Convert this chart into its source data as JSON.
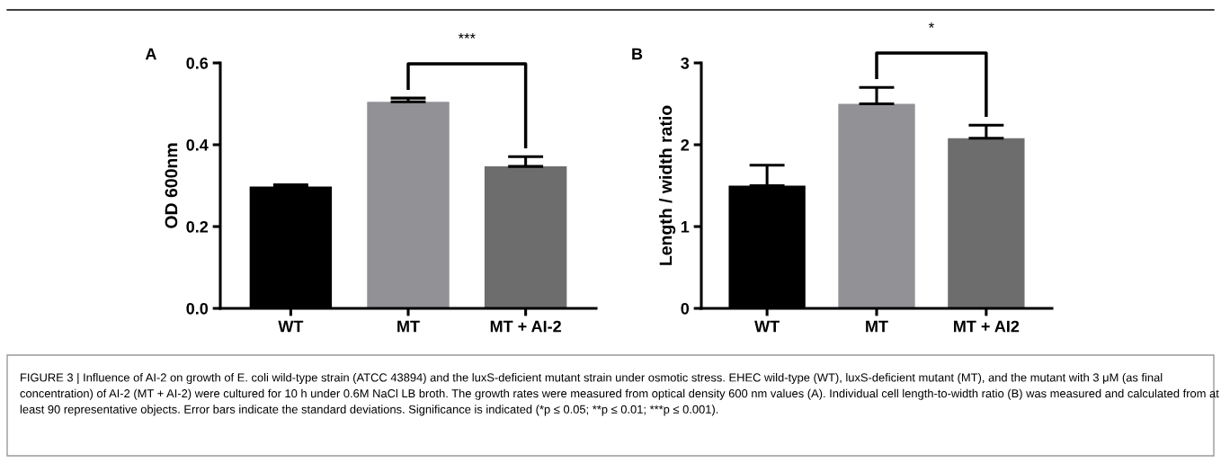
{
  "chart_data": [
    {
      "type": "bar",
      "title": "A",
      "ylabel": "OD 600nm",
      "categories": [
        "WT",
        "MT",
        "MT + AI-2"
      ],
      "values": [
        0.298,
        0.505,
        0.347
      ],
      "colors": [
        "#000000",
        "#929196",
        "#6d6d6d"
      ],
      "errors": [
        [
          0.298,
          0.302
        ],
        [
          0.505,
          0.514
        ],
        [
          0.347,
          0.371
        ]
      ],
      "ylim": [
        0,
        0.6
      ],
      "yticks": [
        {
          "value": 0,
          "label": "0.0"
        },
        0.2,
        0.4,
        0.6
      ],
      "annotations": [
        "***"
      ]
    },
    {
      "type": "bar",
      "title": "B",
      "ylabel": "Length / width ratio",
      "categories": [
        "WT",
        "MT",
        "MT + AI2"
      ],
      "values": [
        1.5,
        2.5,
        2.08
      ],
      "colors": [
        "#000000",
        "#929196",
        "#6d6d6d"
      ],
      "errors": [
        [
          1.5,
          1.75
        ],
        [
          2.5,
          2.7
        ],
        [
          2.08,
          2.24
        ]
      ],
      "ylim": [
        0,
        3
      ],
      "yticks": [
        0,
        1,
        2,
        3
      ],
      "annotations": [
        "*"
      ]
    },
    {
      "type": "other",
      "annotations": [
        "FIGURE 3 | Influence of AI-2 on growth of E. coli wild-type strain (ATCC 43894) and the luxS-deficient mutant strain under osmotic stress. EHEC wild-type (WT), luxS-deficient mutant (MT), and the mutant with 3 μM (as final concentration) of AI-2 (MT + AI-2) were cultured for 10 h under 0.6M NaCl LB broth. The growth rates were measured from optical density 600 nm values (A). Individual cell length-to-width ratio (B) was measured and calculated from at least 90 representative objects. Error bars indicate the standard deviations. Significance is indicated (*p ≤ 0.05; **p ≤ 0.01; ***p ≤ 0.001)."
      ]
    }
  ]
}
